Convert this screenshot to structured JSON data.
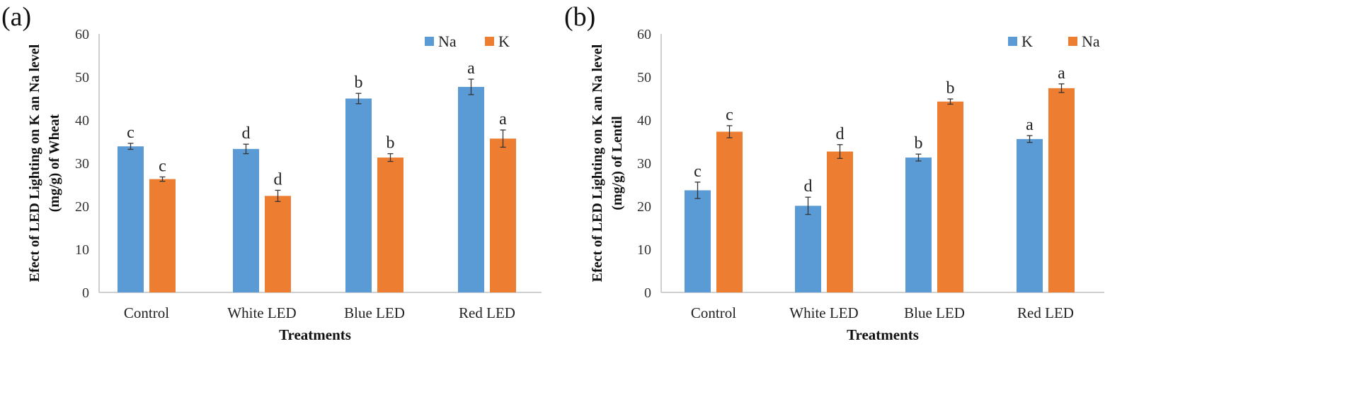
{
  "panels": [
    {
      "panel_label": "(a)",
      "legend": [
        {
          "name": "Na",
          "color": "#5b9bd5"
        },
        {
          "name": "K",
          "color": "#ed7d31"
        }
      ]
    },
    {
      "panel_label": "(b)",
      "legend": [
        {
          "name": "K",
          "color": "#5b9bd5"
        },
        {
          "name": "Na",
          "color": "#ed7d31"
        }
      ]
    }
  ],
  "chart_data": [
    {
      "type": "bar",
      "panel": "(a)",
      "title": "",
      "xlabel": "Treatments",
      "ylabel": [
        "Efect of LED Lighting on K an Na level",
        "(mg/g) of Wheat"
      ],
      "ylim": [
        0,
        60
      ],
      "yticks": [
        0,
        10,
        20,
        30,
        40,
        50,
        60
      ],
      "grid": false,
      "legend_position": "top-right",
      "categories": [
        "Control",
        "White LED",
        "Blue LED",
        "Red LED"
      ],
      "series": [
        {
          "name": "Na",
          "color": "#5b9bd5",
          "values": [
            33.9,
            33.3,
            45.0,
            47.7
          ],
          "errors": [
            0.7,
            1.1,
            1.2,
            1.8
          ],
          "labels": [
            "c",
            "d",
            "b",
            "a"
          ]
        },
        {
          "name": "K",
          "color": "#ed7d31",
          "values": [
            26.3,
            22.4,
            31.3,
            35.7
          ],
          "errors": [
            0.5,
            1.3,
            0.9,
            2.0
          ],
          "labels": [
            "c",
            "d",
            "b",
            "a"
          ]
        }
      ]
    },
    {
      "type": "bar",
      "panel": "(b)",
      "title": "",
      "xlabel": "Treatments",
      "ylabel": [
        "Efect of LED Lighting on K an Na level",
        "(mg/g) of Lentil"
      ],
      "ylim": [
        0,
        60
      ],
      "yticks": [
        0,
        10,
        20,
        30,
        40,
        50,
        60
      ],
      "grid": false,
      "legend_position": "top-right",
      "categories": [
        "Control",
        "White LED",
        "Blue LED",
        "Red LED"
      ],
      "series": [
        {
          "name": "K",
          "color": "#5b9bd5",
          "values": [
            23.7,
            20.1,
            31.3,
            35.6
          ],
          "errors": [
            1.9,
            2.0,
            0.8,
            0.8
          ],
          "labels": [
            "c",
            "d",
            "b",
            "a"
          ]
        },
        {
          "name": "Na",
          "color": "#ed7d31",
          "values": [
            37.3,
            32.7,
            44.3,
            47.4
          ],
          "errors": [
            1.4,
            1.6,
            0.6,
            1.0
          ],
          "labels": [
            "c",
            "d",
            "b",
            "a"
          ]
        }
      ]
    }
  ]
}
